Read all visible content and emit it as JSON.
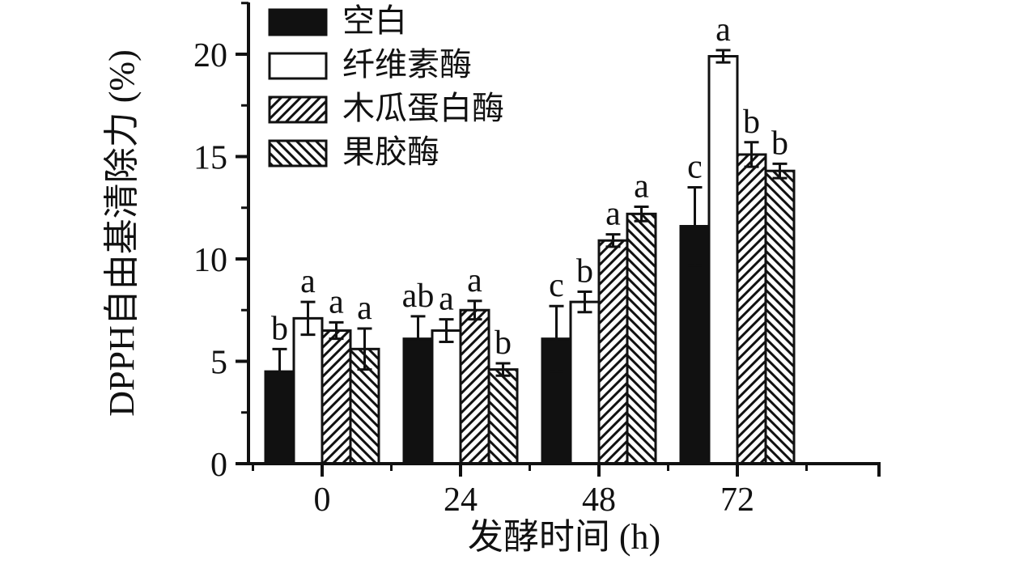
{
  "chart_data": {
    "type": "bar",
    "title": "",
    "xlabel": "发酵时间 (h)",
    "ylabel": "DPPH自由基清除力 (%)",
    "categories": [
      "0",
      "24",
      "48",
      "72"
    ],
    "ylim": [
      0,
      22.5
    ],
    "yticks": [
      0,
      5,
      10,
      15,
      20
    ],
    "y_minor_interval": 2.5,
    "grid": false,
    "legend_position": "top-left-inside",
    "error_bars": true,
    "series": [
      {
        "name": "空白",
        "style": "solid-black",
        "values": [
          4.5,
          6.1,
          6.1,
          11.6
        ],
        "errors": [
          1.1,
          1.1,
          1.6,
          1.9
        ],
        "sig_labels": [
          "b",
          "ab",
          "c",
          "c"
        ]
      },
      {
        "name": "纤维素酶",
        "style": "white",
        "values": [
          7.1,
          6.5,
          7.9,
          19.9
        ],
        "errors": [
          0.8,
          0.55,
          0.5,
          0.3
        ],
        "sig_labels": [
          "a",
          "a",
          "b",
          "a"
        ]
      },
      {
        "name": "木瓜蛋白酶",
        "style": "hatch-forward",
        "values": [
          6.5,
          7.5,
          10.9,
          15.1
        ],
        "errors": [
          0.4,
          0.45,
          0.3,
          0.6
        ],
        "sig_labels": [
          "a",
          "a",
          "a",
          "b"
        ]
      },
      {
        "name": "果胶酶",
        "style": "hatch-backward",
        "values": [
          5.6,
          4.6,
          12.2,
          14.3
        ],
        "errors": [
          1.0,
          0.3,
          0.35,
          0.35
        ],
        "sig_labels": [
          "a",
          "b",
          "a",
          "b"
        ]
      }
    ],
    "colors": {
      "foreground": "#111111",
      "background": "#ffffff"
    }
  }
}
